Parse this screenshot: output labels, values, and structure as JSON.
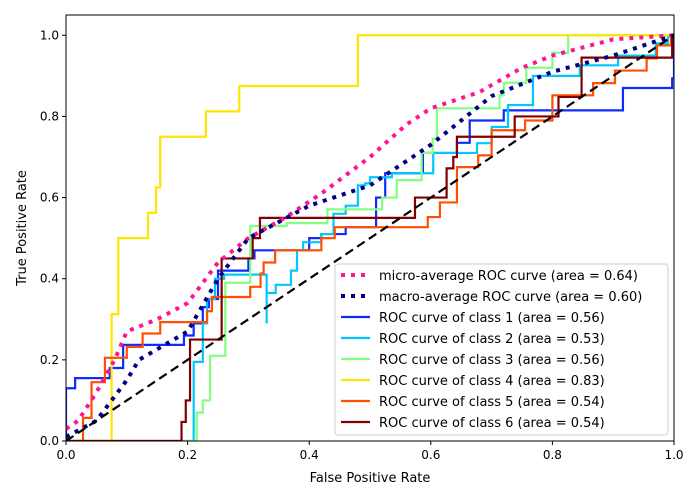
{
  "chart_data": {
    "type": "line",
    "title": "",
    "xlabel": "False Positive Rate",
    "ylabel": "True Positive Rate",
    "xlim": [
      0,
      1
    ],
    "ylim": [
      0,
      1.05
    ],
    "xticks": [
      "0.0",
      "0.2",
      "0.4",
      "0.6",
      "0.8",
      "1.0"
    ],
    "yticks": [
      "0.0",
      "0.2",
      "0.4",
      "0.6",
      "0.8",
      "1.0"
    ],
    "grid": false,
    "legend_position": "lower-right",
    "series": [
      {
        "name": "micro-average ROC curve (area = 0.64)",
        "color": "#ff1493",
        "style": "dotted",
        "points": [
          [
            0,
            0.03
          ],
          [
            0.02,
            0.05
          ],
          [
            0.05,
            0.12
          ],
          [
            0.08,
            0.2
          ],
          [
            0.1,
            0.27
          ],
          [
            0.15,
            0.3
          ],
          [
            0.2,
            0.34
          ],
          [
            0.25,
            0.44
          ],
          [
            0.3,
            0.5
          ],
          [
            0.36,
            0.55
          ],
          [
            0.42,
            0.61
          ],
          [
            0.5,
            0.7
          ],
          [
            0.56,
            0.78
          ],
          [
            0.6,
            0.82
          ],
          [
            0.68,
            0.86
          ],
          [
            0.75,
            0.92
          ],
          [
            0.8,
            0.95
          ],
          [
            0.9,
            0.99
          ],
          [
            1,
            1
          ]
        ]
      },
      {
        "name": "macro-average ROC curve (area = 0.60)",
        "color": "#000080",
        "style": "dotted",
        "points": [
          [
            0,
            0.01
          ],
          [
            0.05,
            0.05
          ],
          [
            0.1,
            0.15
          ],
          [
            0.12,
            0.2
          ],
          [
            0.2,
            0.27
          ],
          [
            0.25,
            0.4
          ],
          [
            0.3,
            0.5
          ],
          [
            0.4,
            0.58
          ],
          [
            0.5,
            0.63
          ],
          [
            0.6,
            0.73
          ],
          [
            0.7,
            0.85
          ],
          [
            0.8,
            0.91
          ],
          [
            0.9,
            0.95
          ],
          [
            1,
            1
          ]
        ]
      },
      {
        "name": "ROC curve of class 1 (area = 0.56)",
        "color": "#0d2bff",
        "style": "solid",
        "points": [
          [
            0,
            0
          ],
          [
            0,
            0.13
          ],
          [
            0.015,
            0.13
          ],
          [
            0.015,
            0.155
          ],
          [
            0.072,
            0.155
          ],
          [
            0.072,
            0.18
          ],
          [
            0.094,
            0.18
          ],
          [
            0.094,
            0.237
          ],
          [
            0.194,
            0.237
          ],
          [
            0.194,
            0.26
          ],
          [
            0.21,
            0.26
          ],
          [
            0.21,
            0.29
          ],
          [
            0.225,
            0.29
          ],
          [
            0.225,
            0.33
          ],
          [
            0.235,
            0.33
          ],
          [
            0.235,
            0.35
          ],
          [
            0.25,
            0.35
          ],
          [
            0.25,
            0.42
          ],
          [
            0.3,
            0.42
          ],
          [
            0.3,
            0.45
          ],
          [
            0.31,
            0.45
          ],
          [
            0.31,
            0.47
          ],
          [
            0.4,
            0.47
          ],
          [
            0.4,
            0.5
          ],
          [
            0.42,
            0.5
          ],
          [
            0.42,
            0.51
          ],
          [
            0.46,
            0.51
          ],
          [
            0.46,
            0.527
          ],
          [
            0.51,
            0.527
          ],
          [
            0.51,
            0.6
          ],
          [
            0.525,
            0.6
          ],
          [
            0.525,
            0.66
          ],
          [
            0.587,
            0.66
          ],
          [
            0.587,
            0.71
          ],
          [
            0.643,
            0.71
          ],
          [
            0.643,
            0.735
          ],
          [
            0.664,
            0.735
          ],
          [
            0.664,
            0.79
          ],
          [
            0.72,
            0.79
          ],
          [
            0.72,
            0.815
          ],
          [
            0.916,
            0.815
          ],
          [
            0.916,
            0.87
          ],
          [
            0.997,
            0.87
          ],
          [
            0.997,
            0.894
          ],
          [
            1,
            0.894
          ],
          [
            1,
            1
          ]
        ]
      },
      {
        "name": "ROC curve of class 2 (area = 0.53)",
        "color": "#00c8ff",
        "style": "solid",
        "points": [
          [
            0,
            0
          ],
          [
            0.21,
            0
          ],
          [
            0.21,
            0.195
          ],
          [
            0.225,
            0.195
          ],
          [
            0.225,
            0.29
          ],
          [
            0.232,
            0.29
          ],
          [
            0.232,
            0.35
          ],
          [
            0.245,
            0.35
          ],
          [
            0.245,
            0.4
          ],
          [
            0.26,
            0.4
          ],
          [
            0.26,
            0.41
          ],
          [
            0.33,
            0.41
          ],
          [
            0.33,
            0.365
          ],
          [
            0.33,
            0.29
          ],
          [
            0.33,
            0.365
          ],
          [
            0.345,
            0.365
          ],
          [
            0.345,
            0.385
          ],
          [
            0.37,
            0.385
          ],
          [
            0.37,
            0.42
          ],
          [
            0.38,
            0.42
          ],
          [
            0.38,
            0.47
          ],
          [
            0.39,
            0.47
          ],
          [
            0.39,
            0.49
          ],
          [
            0.42,
            0.49
          ],
          [
            0.42,
            0.51
          ],
          [
            0.44,
            0.51
          ],
          [
            0.44,
            0.56
          ],
          [
            0.46,
            0.56
          ],
          [
            0.46,
            0.58
          ],
          [
            0.48,
            0.58
          ],
          [
            0.48,
            0.63
          ],
          [
            0.492,
            0.63
          ],
          [
            0.492,
            0.635
          ],
          [
            0.5,
            0.635
          ],
          [
            0.5,
            0.65
          ],
          [
            0.536,
            0.65
          ],
          [
            0.536,
            0.66
          ],
          [
            0.604,
            0.66
          ],
          [
            0.604,
            0.71
          ],
          [
            0.676,
            0.71
          ],
          [
            0.676,
            0.734
          ],
          [
            0.7,
            0.734
          ],
          [
            0.7,
            0.774
          ],
          [
            0.727,
            0.774
          ],
          [
            0.727,
            0.828
          ],
          [
            0.768,
            0.828
          ],
          [
            0.768,
            0.9
          ],
          [
            0.845,
            0.9
          ],
          [
            0.845,
            0.926
          ],
          [
            0.908,
            0.926
          ],
          [
            0.908,
            0.95
          ],
          [
            0.97,
            0.95
          ],
          [
            0.97,
            0.98
          ],
          [
            0.99,
            0.98
          ],
          [
            0.99,
            1
          ],
          [
            1,
            1
          ]
        ]
      },
      {
        "name": "ROC curve of class 3 (area = 0.56)",
        "color": "#80ff80",
        "style": "solid",
        "points": [
          [
            0,
            0
          ],
          [
            0.215,
            0
          ],
          [
            0.215,
            0.07
          ],
          [
            0.225,
            0.07
          ],
          [
            0.225,
            0.1
          ],
          [
            0.237,
            0.1
          ],
          [
            0.237,
            0.21
          ],
          [
            0.262,
            0.21
          ],
          [
            0.262,
            0.39
          ],
          [
            0.303,
            0.39
          ],
          [
            0.303,
            0.53
          ],
          [
            0.363,
            0.53
          ],
          [
            0.363,
            0.537
          ],
          [
            0.43,
            0.537
          ],
          [
            0.43,
            0.571
          ],
          [
            0.52,
            0.571
          ],
          [
            0.52,
            0.6
          ],
          [
            0.544,
            0.6
          ],
          [
            0.544,
            0.643
          ],
          [
            0.585,
            0.643
          ],
          [
            0.585,
            0.71
          ],
          [
            0.603,
            0.71
          ],
          [
            0.603,
            0.745
          ],
          [
            0.61,
            0.745
          ],
          [
            0.61,
            0.82
          ],
          [
            0.713,
            0.82
          ],
          [
            0.713,
            0.852
          ],
          [
            0.72,
            0.852
          ],
          [
            0.72,
            0.883
          ],
          [
            0.757,
            0.883
          ],
          [
            0.757,
            0.92
          ],
          [
            0.8,
            0.92
          ],
          [
            0.8,
            0.957
          ],
          [
            0.826,
            0.957
          ],
          [
            0.826,
            1
          ],
          [
            1,
            1
          ]
        ]
      },
      {
        "name": "ROC curve of class 4 (area = 0.83)",
        "color": "#ffe500",
        "style": "solid",
        "points": [
          [
            0,
            0
          ],
          [
            0.075,
            0
          ],
          [
            0.075,
            0.3125
          ],
          [
            0.086,
            0.3125
          ],
          [
            0.086,
            0.5
          ],
          [
            0.135,
            0.5
          ],
          [
            0.135,
            0.5625
          ],
          [
            0.148,
            0.5625
          ],
          [
            0.148,
            0.625
          ],
          [
            0.155,
            0.625
          ],
          [
            0.155,
            0.75
          ],
          [
            0.23,
            0.75
          ],
          [
            0.23,
            0.8125
          ],
          [
            0.285,
            0.8125
          ],
          [
            0.285,
            0.875
          ],
          [
            0.48,
            0.875
          ],
          [
            0.48,
            1
          ],
          [
            1,
            1
          ]
        ]
      },
      {
        "name": "ROC curve of class 5 (area = 0.54)",
        "color": "#ff4f00",
        "style": "solid",
        "points": [
          [
            0,
            0
          ],
          [
            0.028,
            0
          ],
          [
            0.028,
            0.057
          ],
          [
            0.042,
            0.057
          ],
          [
            0.042,
            0.145
          ],
          [
            0.064,
            0.145
          ],
          [
            0.064,
            0.205
          ],
          [
            0.1,
            0.205
          ],
          [
            0.1,
            0.232
          ],
          [
            0.126,
            0.232
          ],
          [
            0.126,
            0.265
          ],
          [
            0.155,
            0.265
          ],
          [
            0.155,
            0.293
          ],
          [
            0.232,
            0.293
          ],
          [
            0.232,
            0.32
          ],
          [
            0.24,
            0.32
          ],
          [
            0.24,
            0.355
          ],
          [
            0.303,
            0.355
          ],
          [
            0.303,
            0.38
          ],
          [
            0.32,
            0.38
          ],
          [
            0.32,
            0.413
          ],
          [
            0.325,
            0.413
          ],
          [
            0.325,
            0.44
          ],
          [
            0.344,
            0.44
          ],
          [
            0.344,
            0.47
          ],
          [
            0.42,
            0.47
          ],
          [
            0.42,
            0.5
          ],
          [
            0.442,
            0.5
          ],
          [
            0.442,
            0.527
          ],
          [
            0.595,
            0.527
          ],
          [
            0.595,
            0.552
          ],
          [
            0.615,
            0.552
          ],
          [
            0.615,
            0.588
          ],
          [
            0.643,
            0.588
          ],
          [
            0.643,
            0.675
          ],
          [
            0.678,
            0.675
          ],
          [
            0.678,
            0.704
          ],
          [
            0.7,
            0.704
          ],
          [
            0.7,
            0.766
          ],
          [
            0.755,
            0.766
          ],
          [
            0.755,
            0.79
          ],
          [
            0.8,
            0.79
          ],
          [
            0.8,
            0.852
          ],
          [
            0.867,
            0.852
          ],
          [
            0.867,
            0.882
          ],
          [
            0.903,
            0.882
          ],
          [
            0.903,
            0.913
          ],
          [
            0.955,
            0.913
          ],
          [
            0.955,
            0.943
          ],
          [
            0.972,
            0.943
          ],
          [
            0.972,
            0.975
          ],
          [
            0.995,
            0.975
          ],
          [
            0.995,
            1
          ],
          [
            1,
            1
          ]
        ]
      },
      {
        "name": "ROC curve of class 6 (area = 0.54)",
        "color": "#800000",
        "style": "solid",
        "points": [
          [
            0,
            0
          ],
          [
            0.19,
            0
          ],
          [
            0.19,
            0.047
          ],
          [
            0.197,
            0.047
          ],
          [
            0.197,
            0.1
          ],
          [
            0.204,
            0.1
          ],
          [
            0.204,
            0.25
          ],
          [
            0.256,
            0.25
          ],
          [
            0.256,
            0.45
          ],
          [
            0.307,
            0.45
          ],
          [
            0.307,
            0.5
          ],
          [
            0.319,
            0.5
          ],
          [
            0.319,
            0.55
          ],
          [
            0.574,
            0.55
          ],
          [
            0.574,
            0.6
          ],
          [
            0.626,
            0.6
          ],
          [
            0.626,
            0.672
          ],
          [
            0.637,
            0.672
          ],
          [
            0.637,
            0.7
          ],
          [
            0.643,
            0.7
          ],
          [
            0.643,
            0.75
          ],
          [
            0.738,
            0.75
          ],
          [
            0.738,
            0.8
          ],
          [
            0.81,
            0.8
          ],
          [
            0.81,
            0.848
          ],
          [
            0.848,
            0.848
          ],
          [
            0.848,
            0.945
          ],
          [
            0.997,
            0.945
          ],
          [
            0.997,
            1
          ],
          [
            1,
            1
          ]
        ]
      }
    ],
    "reference_line": {
      "points": [
        [
          0,
          0
        ],
        [
          1,
          1
        ]
      ],
      "color": "#000000",
      "style": "dashed"
    }
  }
}
